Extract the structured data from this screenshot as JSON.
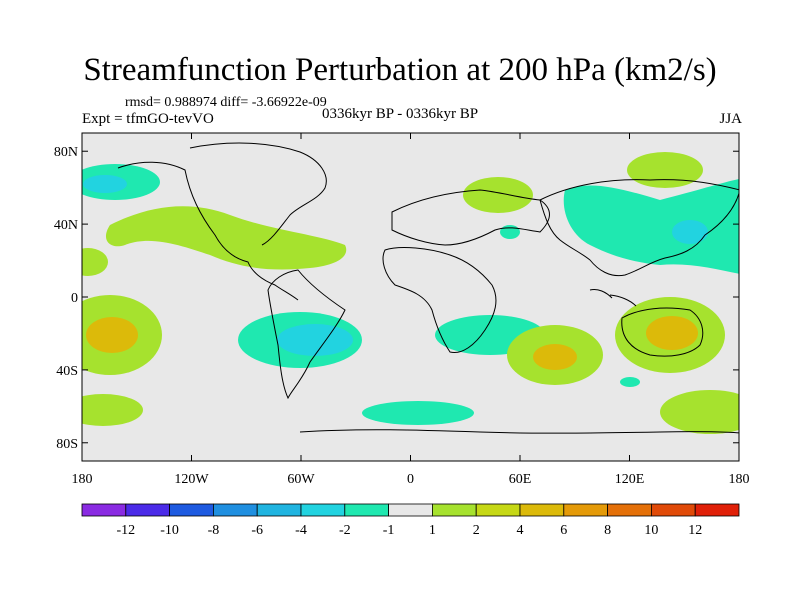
{
  "title": "Streamfunction Perturbation at 200 hPa (km2/s)",
  "stats_line": "rmsd= 0.988974 diff= -3.66922e-09",
  "experiment": "Expt = tfmGO-tevVO",
  "period": "0336kyr BP - 0336kyr BP",
  "season": "JJA",
  "lat_ticks": [
    {
      "value": 80,
      "label": "80N"
    },
    {
      "value": 40,
      "label": "40N"
    },
    {
      "value": 0,
      "label": "0"
    },
    {
      "value": -40,
      "label": "40S"
    },
    {
      "value": -80,
      "label": "80S"
    }
  ],
  "lon_ticks": [
    {
      "value": -180,
      "label": "180"
    },
    {
      "value": -120,
      "label": "120W"
    },
    {
      "value": -60,
      "label": "60W"
    },
    {
      "value": 0,
      "label": "0"
    },
    {
      "value": 60,
      "label": "60E"
    },
    {
      "value": 120,
      "label": "120E"
    },
    {
      "value": 180,
      "label": "180"
    }
  ],
  "colorbar": {
    "colors": [
      "#8a2be2",
      "#4b2be8",
      "#1e5ae0",
      "#1f8fe0",
      "#20b4e0",
      "#22d3e0",
      "#1fe8b0",
      "#e8e8e8",
      "#a6e22e",
      "#c6d816",
      "#dcba0a",
      "#e49a08",
      "#e47008",
      "#e04a08",
      "#e02008"
    ],
    "labels": [
      "-12",
      "-10",
      "-8",
      "-6",
      "-4",
      "-2",
      "-1",
      "1",
      "2",
      "4",
      "6",
      "8",
      "10",
      "12"
    ]
  },
  "colors": {
    "neutral": "#e8e8e8",
    "neg1": "#1fe8b0",
    "neg2": "#22d3e0",
    "pos1": "#a6e22e",
    "pos2": "#dcba0a"
  }
}
